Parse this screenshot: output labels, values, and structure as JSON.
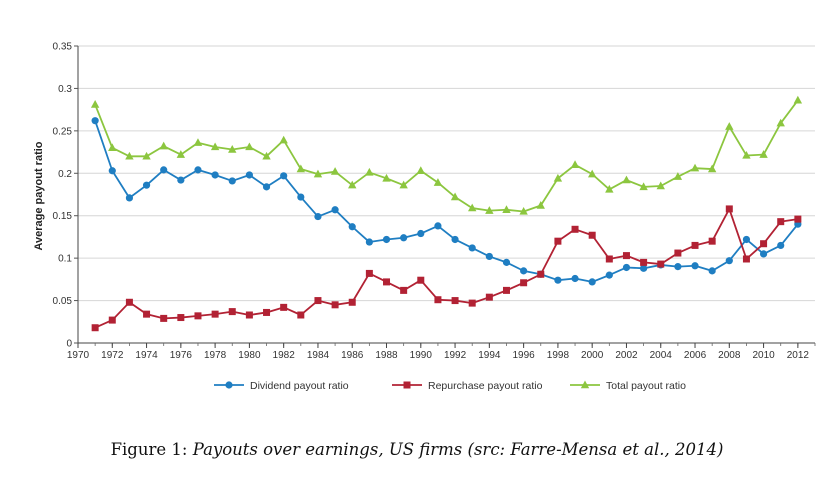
{
  "chart_data": {
    "type": "line",
    "ylabel": "Average payout ratio",
    "xlabel": "",
    "xlim": [
      1970,
      2013
    ],
    "ylim": [
      0,
      0.35
    ],
    "x_ticks": [
      1970,
      1972,
      1974,
      1976,
      1978,
      1980,
      1982,
      1984,
      1986,
      1988,
      1990,
      1992,
      1994,
      1996,
      1998,
      2000,
      2002,
      2004,
      2006,
      2008,
      2010,
      2012
    ],
    "y_ticks": [
      0,
      0.05,
      0.1,
      0.15,
      0.2,
      0.25,
      0.3,
      0.35
    ],
    "y_tick_labels": [
      "0",
      "0.05",
      "0.1",
      "0.15",
      "0.2",
      "0.25",
      "0.3",
      "0.35"
    ],
    "grid": "horizontal",
    "legend_position": "bottom",
    "x": [
      1971,
      1972,
      1973,
      1974,
      1975,
      1976,
      1977,
      1978,
      1979,
      1980,
      1981,
      1982,
      1983,
      1984,
      1985,
      1986,
      1987,
      1988,
      1989,
      1990,
      1991,
      1992,
      1993,
      1994,
      1995,
      1996,
      1997,
      1998,
      1999,
      2000,
      2001,
      2002,
      2003,
      2004,
      2005,
      2006,
      2007,
      2008,
      2009,
      2010,
      2011,
      2012
    ],
    "series": [
      {
        "name": "Dividend payout ratio",
        "color": "#1f7ec2",
        "marker": "circle",
        "values": [
          0.262,
          0.203,
          0.171,
          0.186,
          0.204,
          0.192,
          0.204,
          0.198,
          0.191,
          0.198,
          0.184,
          0.197,
          0.172,
          0.149,
          0.157,
          0.137,
          0.119,
          0.122,
          0.124,
          0.129,
          0.138,
          0.122,
          0.112,
          0.102,
          0.095,
          0.085,
          0.081,
          0.074,
          0.076,
          0.072,
          0.08,
          0.089,
          0.088,
          0.092,
          0.09,
          0.091,
          0.085,
          0.097,
          0.122,
          0.105,
          0.115,
          0.14
        ]
      },
      {
        "name": "Repurchase payout ratio",
        "color": "#b22234",
        "marker": "square",
        "values": [
          0.018,
          0.027,
          0.048,
          0.034,
          0.029,
          0.03,
          0.032,
          0.034,
          0.037,
          0.033,
          0.036,
          0.042,
          0.033,
          0.05,
          0.045,
          0.048,
          0.082,
          0.072,
          0.062,
          0.074,
          0.051,
          0.05,
          0.047,
          0.054,
          0.062,
          0.071,
          0.081,
          0.12,
          0.134,
          0.127,
          0.099,
          0.103,
          0.095,
          0.093,
          0.106,
          0.115,
          0.12,
          0.158,
          0.099,
          0.117,
          0.143,
          0.146
        ]
      },
      {
        "name": "Total payout ratio",
        "color": "#8cc63f",
        "marker": "triangle",
        "values": [
          0.281,
          0.23,
          0.22,
          0.22,
          0.232,
          0.222,
          0.236,
          0.231,
          0.228,
          0.231,
          0.22,
          0.239,
          0.205,
          0.199,
          0.202,
          0.186,
          0.201,
          0.194,
          0.186,
          0.203,
          0.189,
          0.172,
          0.159,
          0.156,
          0.157,
          0.155,
          0.162,
          0.194,
          0.21,
          0.199,
          0.181,
          0.192,
          0.184,
          0.185,
          0.196,
          0.206,
          0.205,
          0.255,
          0.221,
          0.222,
          0.259,
          0.286
        ]
      }
    ]
  },
  "caption": {
    "label": "Figure 1: ",
    "text": "Payouts over earnings, US firms (src: Farre-Mensa et al., 2014)"
  }
}
